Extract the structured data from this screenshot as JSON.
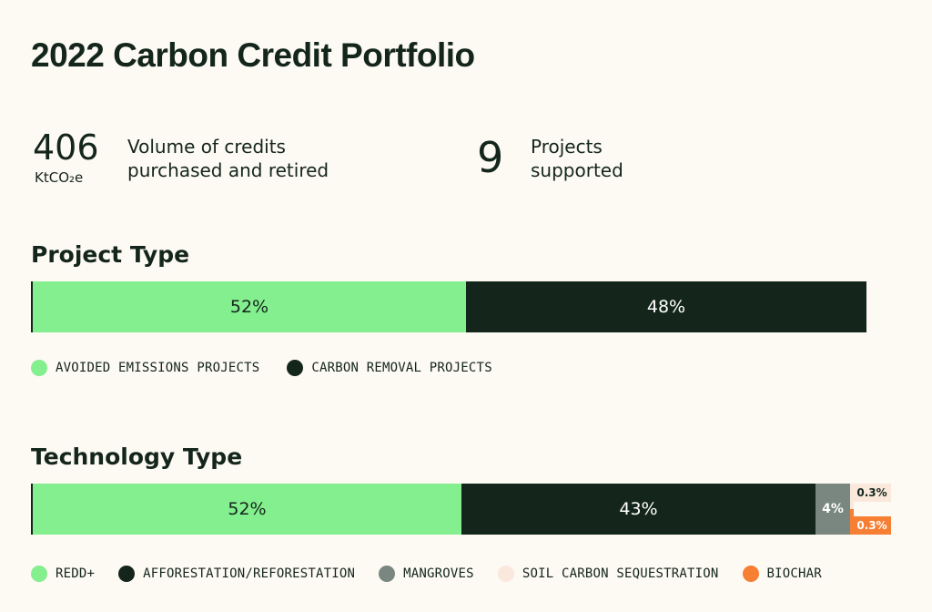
{
  "title": "2022 Carbon Credit Portfolio",
  "stats": [
    {
      "value": "406",
      "unit": "KtCO₂e",
      "label_line1": "Volume of credits",
      "label_line2": "purchased and retired"
    },
    {
      "value": "9",
      "unit": "",
      "label_line1": "Projects",
      "label_line2": "supported"
    }
  ],
  "chart_data": [
    {
      "type": "bar",
      "orientation": "horizontal-stacked",
      "title": "Project Type",
      "categories": [
        "AVOIDED EMISSIONS PROJECTS",
        "CARBON REMOVAL PROJECTS"
      ],
      "values": [
        52,
        48
      ],
      "value_labels": [
        "52%",
        "48%"
      ],
      "colors": [
        "#84ef8e",
        "#14261c"
      ],
      "text_colors": [
        "#14261c",
        "#ffffff"
      ],
      "legend_position": "bottom"
    },
    {
      "type": "bar",
      "orientation": "horizontal-stacked",
      "title": "Technology Type",
      "categories": [
        "REDD+",
        "AFFORESTATION/REFORESTATION",
        "MANGROVES",
        "SOIL CARBON SEQUESTRATION",
        "BIOCHAR"
      ],
      "values": [
        52,
        43,
        4,
        0.3,
        0.3
      ],
      "value_labels": [
        "52%",
        "43%",
        "4%",
        "0.3%",
        "0.3%"
      ],
      "colors": [
        "#84ef8e",
        "#14261c",
        "#7a8680",
        "#fbe8dc",
        "#f67f34"
      ],
      "text_colors": [
        "#14261c",
        "#ffffff",
        "#ffffff",
        "#14261c",
        "#ffffff"
      ],
      "legend_position": "bottom"
    }
  ]
}
